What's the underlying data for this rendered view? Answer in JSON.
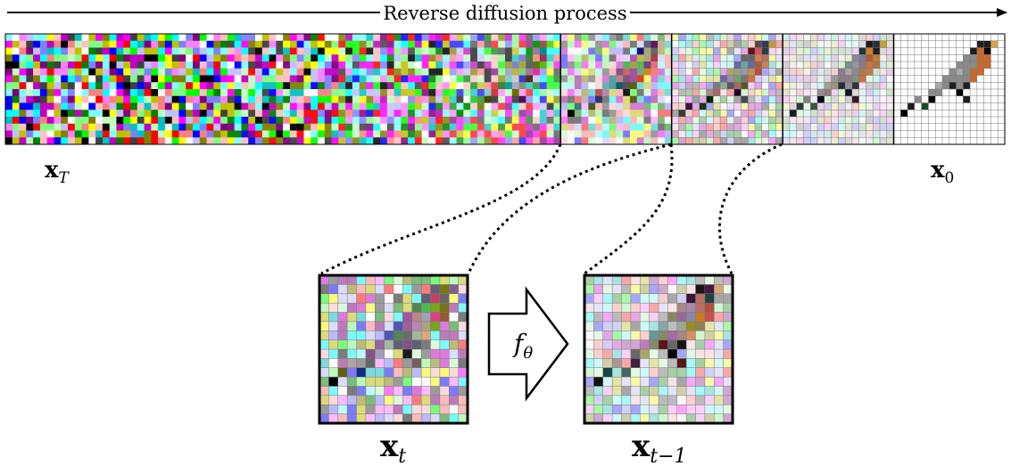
{
  "diagram": {
    "header_label": "Reverse diffusion process",
    "start_label": {
      "base": "x",
      "sub": "T"
    },
    "end_label": {
      "base": "x",
      "sub": "0"
    },
    "xt_label": {
      "base": "x",
      "sub": "t"
    },
    "xt1_label": {
      "base": "x",
      "sub": "t−1"
    },
    "operator_label": {
      "base": "f",
      "sub": "θ"
    },
    "strip_panels": 9,
    "panel_grid": 16,
    "noise_levels": [
      1.0,
      1.0,
      0.95,
      0.85,
      0.7,
      0.5,
      0.32,
      0.15,
      0.0
    ],
    "bird_colors": {
      "dark": "#1e1e1e",
      "black": "#000000",
      "gray": "#8a8a8a",
      "light_gray": "#a8a8a8",
      "orange": "#c8692a",
      "beak": "#d9a441",
      "green_dark": "#1d4a26"
    }
  }
}
